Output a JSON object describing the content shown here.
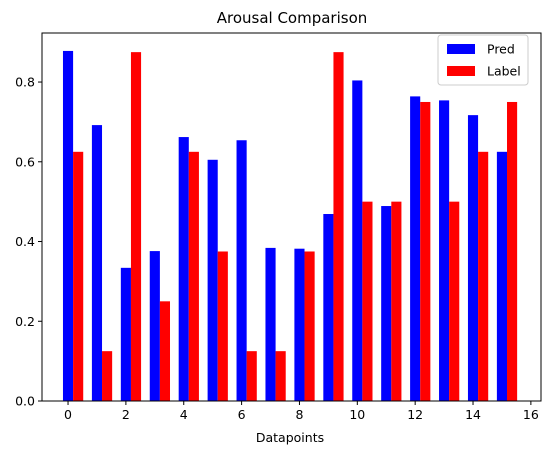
{
  "chart_data": {
    "type": "bar",
    "title": "Arousal Comparison",
    "xlabel": "Datapoints",
    "ylabel": "",
    "x": [
      0,
      1,
      2,
      3,
      4,
      5,
      6,
      7,
      8,
      9,
      10,
      11,
      12,
      13,
      14,
      15
    ],
    "series": [
      {
        "name": "Pred",
        "color": "#0000ff",
        "values": [
          0.878,
          0.692,
          0.334,
          0.376,
          0.662,
          0.605,
          0.654,
          0.384,
          0.382,
          0.469,
          0.804,
          0.489,
          0.764,
          0.754,
          0.717,
          0.625
        ]
      },
      {
        "name": "Label",
        "color": "#ff0000",
        "values": [
          0.625,
          0.125,
          0.875,
          0.25,
          0.625,
          0.375,
          0.125,
          0.125,
          0.375,
          0.875,
          0.5,
          0.5,
          0.75,
          0.5,
          0.625,
          0.75
        ]
      }
    ],
    "xlim": [
      -0.9,
      16.35
    ],
    "ylim": [
      0,
      0.923
    ],
    "xticks": [
      0,
      2,
      4,
      6,
      8,
      10,
      12,
      14,
      16
    ],
    "yticks": [
      0.0,
      0.2,
      0.4,
      0.6,
      0.8
    ],
    "ytick_labels": [
      "0.0",
      "0.2",
      "0.4",
      "0.6",
      "0.8"
    ],
    "bar_width": 0.35,
    "legend_position": "top-right",
    "grid": false
  }
}
